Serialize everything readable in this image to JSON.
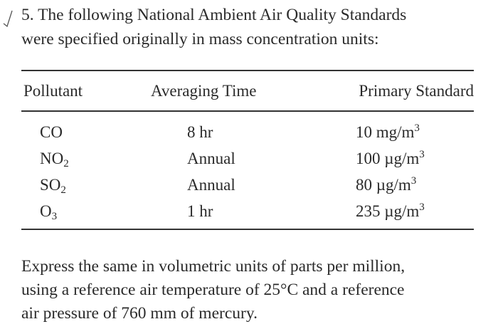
{
  "problem": {
    "number": "5.",
    "line1": "The following National Ambient Air Quality Standards",
    "line2": "were specified originally in mass concentration units:"
  },
  "table": {
    "headers": {
      "pollutant": "Pollutant",
      "averaging_time": "Averaging Time",
      "primary_standard": "Primary Standard"
    },
    "rows": [
      {
        "pollutant_base": "CO",
        "pollutant_sub": "",
        "averaging_time": "8 hr",
        "value": "10",
        "unit_prefix": "mg/m",
        "unit_exp": "3"
      },
      {
        "pollutant_base": "NO",
        "pollutant_sub": "2",
        "averaging_time": "Annual",
        "value": "100",
        "unit_prefix": "µg/m",
        "unit_exp": "3"
      },
      {
        "pollutant_base": "SO",
        "pollutant_sub": "2",
        "averaging_time": "Annual",
        "value": "80",
        "unit_prefix": "µg/m",
        "unit_exp": "3"
      },
      {
        "pollutant_base": "O",
        "pollutant_sub": "3",
        "averaging_time": "1 hr",
        "value": "235",
        "unit_prefix": "µg/m",
        "unit_exp": "3"
      }
    ]
  },
  "question": {
    "line1": "Express the same in volumetric units of parts per million,",
    "line2": "using a reference air temperature of 25°C and a reference",
    "line3": "air pressure of 760 mm of mercury."
  }
}
